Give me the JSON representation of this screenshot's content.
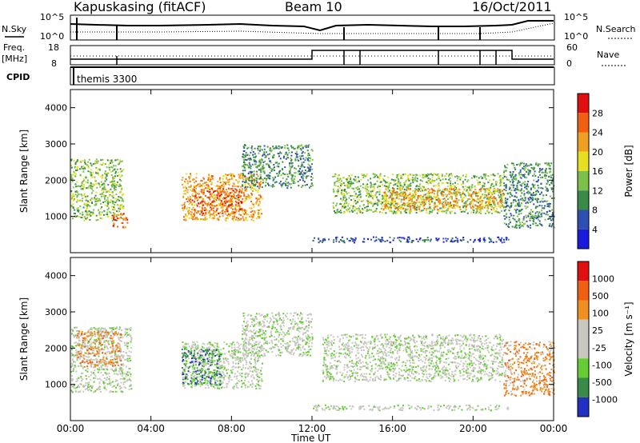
{
  "header": {
    "site": "Kapuskasing (fitACF)",
    "beam": "Beam 10",
    "date": "16/Oct/2011"
  },
  "summary_panels": {
    "nsky_label": "N.Sky",
    "nsky_ticks": [
      "10^5",
      "10^0"
    ],
    "nsearch_label": "N.Search",
    "nsearch_ticks": [
      "10^5",
      "10^0"
    ],
    "freq_label_1": "Freq.",
    "freq_label_2": "[MHz]",
    "freq_ticks": [
      "18",
      "8"
    ],
    "nave_label": "Nave",
    "nave_ticks": [
      "60",
      "0"
    ],
    "cpid_label": "CPID",
    "cpid_value": "themis 3300"
  },
  "x_axis": {
    "label": "Time UT",
    "ticks": [
      "00:00",
      "04:00",
      "08:00",
      "12:00",
      "16:00",
      "20:00",
      "00:00"
    ],
    "range_hours": [
      0,
      24
    ]
  },
  "chart_data": [
    {
      "type": "heatmap",
      "title": "Power",
      "ylabel": "Slant Range [km]",
      "ylim": [
        0,
        4500
      ],
      "yticks": [
        "4000",
        "3000",
        "2000",
        "1000"
      ],
      "colorbar_label": "Power [dB]",
      "colorbar_ticks": [
        "28",
        "24",
        "20",
        "16",
        "12",
        "8",
        "4"
      ],
      "colors": [
        "#1a1adc",
        "#2f4fb0",
        "#3a8a4a",
        "#7cc04a",
        "#e6e020",
        "#f0a020",
        "#f06010",
        "#e01010"
      ],
      "regions": [
        {
          "t0": 0.0,
          "t1": 2.6,
          "r0": 900,
          "r1": 2600,
          "level": 3
        },
        {
          "t0": 2.0,
          "t1": 2.8,
          "r0": 700,
          "r1": 1100,
          "level": 6
        },
        {
          "t0": 5.5,
          "t1": 9.5,
          "r0": 900,
          "r1": 2200,
          "level": 5
        },
        {
          "t0": 6.0,
          "t1": 8.5,
          "r0": 1100,
          "r1": 1800,
          "level": 6
        },
        {
          "t0": 8.5,
          "t1": 12.0,
          "r0": 1800,
          "r1": 3000,
          "level": 2
        },
        {
          "t0": 13.0,
          "t1": 21.5,
          "r0": 1100,
          "r1": 2200,
          "level": 3
        },
        {
          "t0": 15.5,
          "t1": 21.5,
          "r0": 1200,
          "r1": 1800,
          "level": 5
        },
        {
          "t0": 21.5,
          "t1": 24.0,
          "r0": 700,
          "r1": 2500,
          "level": 2
        },
        {
          "t0": 12.0,
          "t1": 21.8,
          "r0": 300,
          "r1": 450,
          "level": 1
        }
      ]
    },
    {
      "type": "heatmap",
      "title": "Velocity",
      "ylabel": "Slant Range [km]",
      "ylim": [
        0,
        4500
      ],
      "yticks": [
        "4000",
        "3000",
        "2000",
        "1000"
      ],
      "colorbar_label": "Velocity [m s⁻¹]",
      "colorbar_ticks": [
        "1000",
        "500",
        "100",
        "25",
        "-25",
        "-100",
        "-500",
        "-1000"
      ],
      "colors": [
        "#2030c0",
        "#3a8a4a",
        "#66cc33",
        "#c8c8c0",
        "#c8c8c0",
        "#f09020",
        "#f06010",
        "#e01010"
      ],
      "regions": [
        {
          "t0": 0.0,
          "t1": 3.0,
          "r0": 800,
          "r1": 2600,
          "level": 3
        },
        {
          "t0": 0.3,
          "t1": 2.5,
          "r0": 1500,
          "r1": 2500,
          "level": 5
        },
        {
          "t0": 5.5,
          "t1": 9.5,
          "r0": 900,
          "r1": 2200,
          "level": 3
        },
        {
          "t0": 5.5,
          "t1": 7.5,
          "r0": 1000,
          "r1": 2000,
          "level": 1
        },
        {
          "t0": 8.5,
          "t1": 12.0,
          "r0": 1800,
          "r1": 3000,
          "level": 3
        },
        {
          "t0": 12.5,
          "t1": 21.5,
          "r0": 1100,
          "r1": 2400,
          "level": 3
        },
        {
          "t0": 21.5,
          "t1": 24.0,
          "r0": 700,
          "r1": 2200,
          "level": 5
        },
        {
          "t0": 12.0,
          "t1": 21.8,
          "r0": 300,
          "r1": 450,
          "level": 3
        }
      ]
    }
  ]
}
